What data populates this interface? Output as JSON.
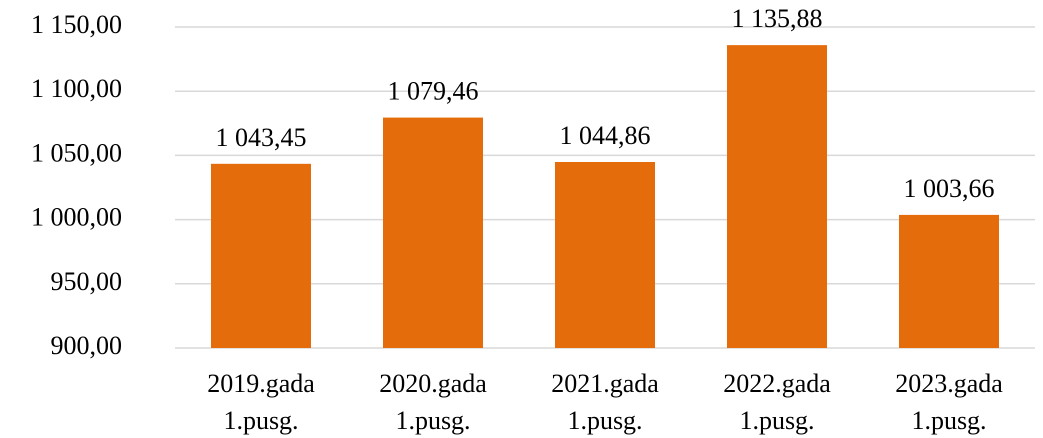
{
  "chart_data": {
    "type": "bar",
    "categories": [
      [
        "2019.gada",
        "1.pusg."
      ],
      [
        "2020.gada",
        "1.pusg."
      ],
      [
        "2021.gada",
        "1.pusg."
      ],
      [
        "2022.gada",
        "1.pusg."
      ],
      [
        "2023.gada",
        "1.pusg."
      ]
    ],
    "values": [
      1043.45,
      1079.46,
      1044.86,
      1135.88,
      1003.66
    ],
    "value_labels": [
      "1 043,45",
      "1 079,46",
      "1 044,86",
      "1 135,88",
      "1 003,66"
    ],
    "color": "#e46c0a",
    "ylim": [
      900,
      1150
    ],
    "yticks": [
      {
        "value": 900,
        "label": "900,00"
      },
      {
        "value": 950,
        "label": "950,00"
      },
      {
        "value": 1000,
        "label": "1 000,00"
      },
      {
        "value": 1050,
        "label": "1 050,00"
      },
      {
        "value": 1100,
        "label": "1 100,00"
      },
      {
        "value": 1150,
        "label": "1 150,00"
      }
    ],
    "grid": true
  }
}
